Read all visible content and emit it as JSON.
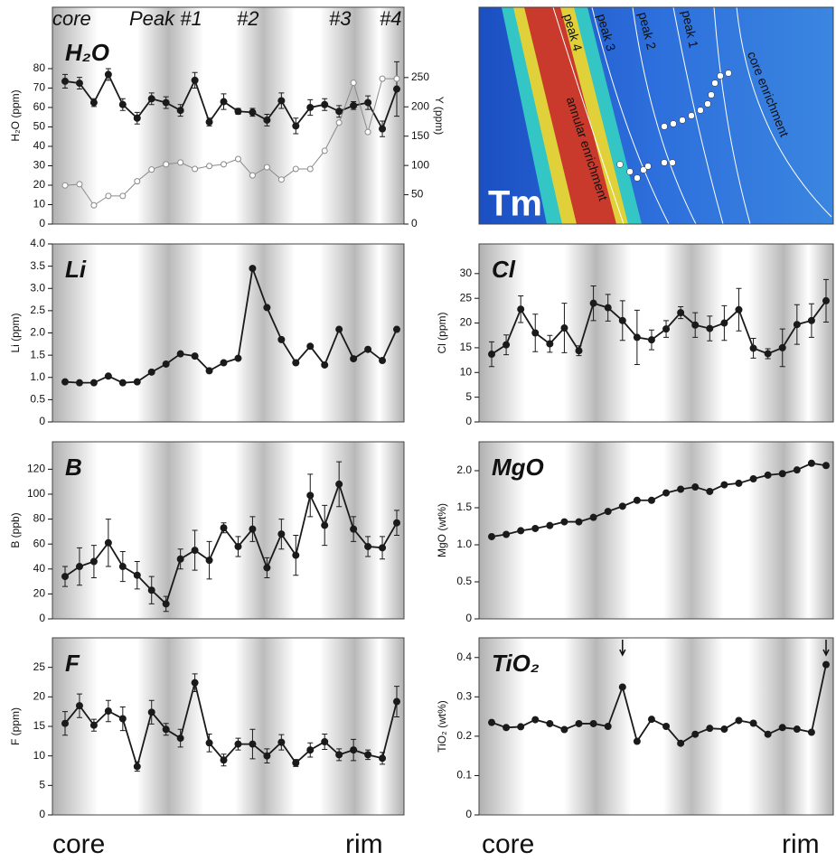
{
  "chart_data": [
    {
      "type": "line",
      "title": "H₂O",
      "ylabel": "H₂O (ppm)",
      "y2label": "Y (ppm)",
      "annotations": [
        "core",
        "Peak #1",
        "#2",
        "#3",
        "#4"
      ],
      "categories": [
        null,
        null,
        null,
        null,
        null,
        null,
        null,
        null,
        null,
        null,
        null,
        null,
        null,
        null,
        null,
        null,
        null,
        null,
        null,
        null,
        null,
        null,
        null,
        null
      ],
      "ylim": [
        0,
        111.6
      ],
      "yticks": [
        0,
        10,
        20,
        30,
        40,
        50,
        60,
        70,
        80
      ],
      "y2lim": [
        0,
        370
      ],
      "y2ticks": [
        0,
        50,
        100,
        150,
        200,
        250
      ],
      "series": [
        {
          "color": "#1a1a1a",
          "marker": "filled",
          "values": [
            73.5,
            72.5,
            62.5,
            77,
            61.5,
            54.5,
            64.5,
            62.5,
            58.5,
            74,
            52.5,
            63,
            58,
            57.5,
            53.5,
            63.5,
            50.5,
            60,
            61.5,
            58,
            61,
            62.5,
            49,
            69.5
          ],
          "errors": [
            3.5,
            3,
            2,
            3,
            3,
            3,
            3,
            3,
            3,
            4,
            2,
            4,
            1.5,
            2,
            3,
            4,
            4,
            4,
            3,
            3,
            2,
            3.5,
            4,
            14
          ]
        },
        {
          "color": "#8a8a8a",
          "marker": "open",
          "axis": "y2",
          "values": [
            66,
            68,
            32,
            48,
            48,
            73,
            93,
            102,
            105,
            94,
            99,
            102,
            111,
            83,
            97,
            76,
            94,
            94,
            125,
            173,
            241,
            157,
            248,
            248
          ]
        }
      ]
    },
    {
      "type": "line",
      "title": "Li",
      "ylabel": "Li (ppm)",
      "categories": [
        null,
        null,
        null,
        null,
        null,
        null,
        null,
        null,
        null,
        null,
        null,
        null,
        null,
        null,
        null,
        null,
        null,
        null,
        null,
        null,
        null,
        null,
        null,
        null
      ],
      "ylim": [
        0,
        4
      ],
      "yticks": [
        0,
        0.5,
        {
          "value": 1,
          "label": "1.0"
        },
        1.5,
        {
          "value": 2,
          "label": "2.0"
        },
        2.5,
        {
          "value": 3,
          "label": "3.0"
        },
        3.5,
        {
          "value": 4,
          "label": "4.0"
        }
      ],
      "series": [
        {
          "color": "#1a1a1a",
          "marker": "filled",
          "values": [
            0.9,
            0.88,
            0.88,
            1.03,
            0.88,
            0.9,
            1.12,
            1.3,
            1.53,
            1.48,
            1.15,
            1.33,
            1.43,
            3.45,
            2.57,
            1.85,
            1.33,
            1.7,
            1.28,
            2.08,
            1.42,
            1.63,
            1.38,
            2.08
          ]
        }
      ]
    },
    {
      "type": "line",
      "title": "Cl",
      "ylabel": "Cl (ppm)",
      "categories": [
        null,
        null,
        null,
        null,
        null,
        null,
        null,
        null,
        null,
        null,
        null,
        null,
        null,
        null,
        null,
        null,
        null,
        null,
        null,
        null,
        null,
        null,
        null,
        null
      ],
      "ylim": [
        0,
        36
      ],
      "yticks": [
        0,
        5,
        10,
        15,
        20,
        25,
        30
      ],
      "series": [
        {
          "color": "#1a1a1a",
          "marker": "filled",
          "values": [
            13.7,
            15.6,
            22.8,
            18,
            15.8,
            19,
            14.4,
            24,
            23.1,
            20.5,
            17.1,
            16.6,
            18.8,
            22.1,
            19.6,
            18.9,
            20,
            22.7,
            14.9,
            13.8,
            15,
            19.7,
            20.5,
            24.5
          ],
          "errors": [
            2.5,
            2,
            2.7,
            3.8,
            1.7,
            5,
            1,
            3.5,
            2.7,
            4,
            5.5,
            2,
            1.7,
            1.2,
            2.5,
            2.5,
            3.5,
            4.3,
            2,
            1,
            3.8,
            4,
            3.4,
            4.3
          ]
        }
      ]
    },
    {
      "type": "line",
      "title": "B",
      "ylabel": "B (ppb)",
      "categories": [
        null,
        null,
        null,
        null,
        null,
        null,
        null,
        null,
        null,
        null,
        null,
        null,
        null,
        null,
        null,
        null,
        null,
        null,
        null,
        null,
        null,
        null,
        null,
        null
      ],
      "ylim": [
        0,
        142
      ],
      "yticks": [
        0,
        20,
        40,
        60,
        80,
        100,
        120
      ],
      "series": [
        {
          "color": "#1a1a1a",
          "marker": "filled",
          "values": [
            34,
            42,
            46,
            61,
            42,
            35,
            23,
            12,
            48,
            55,
            47,
            73,
            58,
            72,
            41,
            68,
            51,
            99,
            75,
            108,
            72,
            58,
            57,
            77
          ],
          "errors": [
            8,
            15,
            13,
            19,
            12,
            11,
            11,
            6,
            8,
            16,
            15,
            4,
            8,
            10,
            8,
            12,
            16,
            17,
            16,
            18,
            10,
            8,
            9,
            10
          ]
        }
      ]
    },
    {
      "type": "line",
      "title": "MgO",
      "ylabel": "MgO (wt%)",
      "categories": [
        null,
        null,
        null,
        null,
        null,
        null,
        null,
        null,
        null,
        null,
        null,
        null,
        null,
        null,
        null,
        null,
        null,
        null,
        null,
        null,
        null,
        null,
        null,
        null
      ],
      "ylim": [
        0,
        2.39
      ],
      "yticks": [
        0,
        0.5,
        {
          "value": 1,
          "label": "1.0"
        },
        1.5,
        {
          "value": 2,
          "label": "2.0"
        }
      ],
      "series": [
        {
          "color": "#1a1a1a",
          "marker": "filled",
          "values": [
            1.11,
            1.14,
            1.19,
            1.22,
            1.26,
            1.31,
            1.31,
            1.37,
            1.45,
            1.52,
            1.6,
            1.6,
            1.7,
            1.75,
            1.78,
            1.72,
            1.81,
            1.83,
            1.89,
            1.94,
            1.96,
            2.01,
            2.1,
            2.07
          ]
        }
      ]
    },
    {
      "type": "line",
      "title": "F",
      "ylabel": "F (ppm)",
      "categories": [
        null,
        null,
        null,
        null,
        null,
        null,
        null,
        null,
        null,
        null,
        null,
        null,
        null,
        null,
        null,
        null,
        null,
        null,
        null,
        null,
        null,
        null,
        null,
        null
      ],
      "ylim": [
        0,
        30
      ],
      "yticks": [
        0,
        5,
        10,
        15,
        20,
        25
      ],
      "series": [
        {
          "color": "#1a1a1a",
          "marker": "filled",
          "values": [
            15.5,
            18.5,
            15.2,
            17.6,
            16.3,
            8.2,
            17.4,
            14.5,
            13,
            22.4,
            12.2,
            9.3,
            12,
            12,
            10,
            12.3,
            8.8,
            11,
            12.4,
            10.2,
            11,
            10.2,
            9.6,
            19.2
          ],
          "errors": [
            2,
            2,
            1,
            1.8,
            2,
            0.8,
            2,
            1,
            1.5,
            1.5,
            1.5,
            1,
            1,
            2.5,
            1.2,
            1.3,
            0.6,
            1.2,
            1.3,
            1,
            1.8,
            0.8,
            1,
            2.6
          ]
        }
      ]
    },
    {
      "type": "line",
      "title": "TiO₂",
      "ylabel": "TiO₂ (wt%)",
      "categories": [
        null,
        null,
        null,
        null,
        null,
        null,
        null,
        null,
        null,
        null,
        null,
        null,
        null,
        null,
        null,
        null,
        null,
        null,
        null,
        null,
        null,
        null,
        null,
        null
      ],
      "ylim": [
        0,
        0.45
      ],
      "yticks": [
        0,
        0.1,
        0.2,
        0.3,
        0.4
      ],
      "series": [
        {
          "color": "#1a1a1a",
          "marker": "filled",
          "values": [
            0.235,
            0.222,
            0.224,
            0.242,
            0.232,
            0.217,
            0.232,
            0.232,
            0.225,
            0.325,
            0.187,
            0.243,
            0.225,
            0.182,
            0.205,
            0.22,
            0.218,
            0.24,
            0.233,
            0.205,
            0.222,
            0.218,
            0.21,
            0.382
          ]
        }
      ]
    }
  ],
  "map_panel": {
    "element": "Tm",
    "labels": [
      "peak 4",
      "peak 3",
      "peak 2",
      "peak 1",
      "core enrichment",
      "annular enrichment"
    ]
  },
  "axis_ends": [
    {
      "start": "core",
      "end": "rim"
    },
    {
      "start": "core",
      "end": "rim"
    }
  ]
}
